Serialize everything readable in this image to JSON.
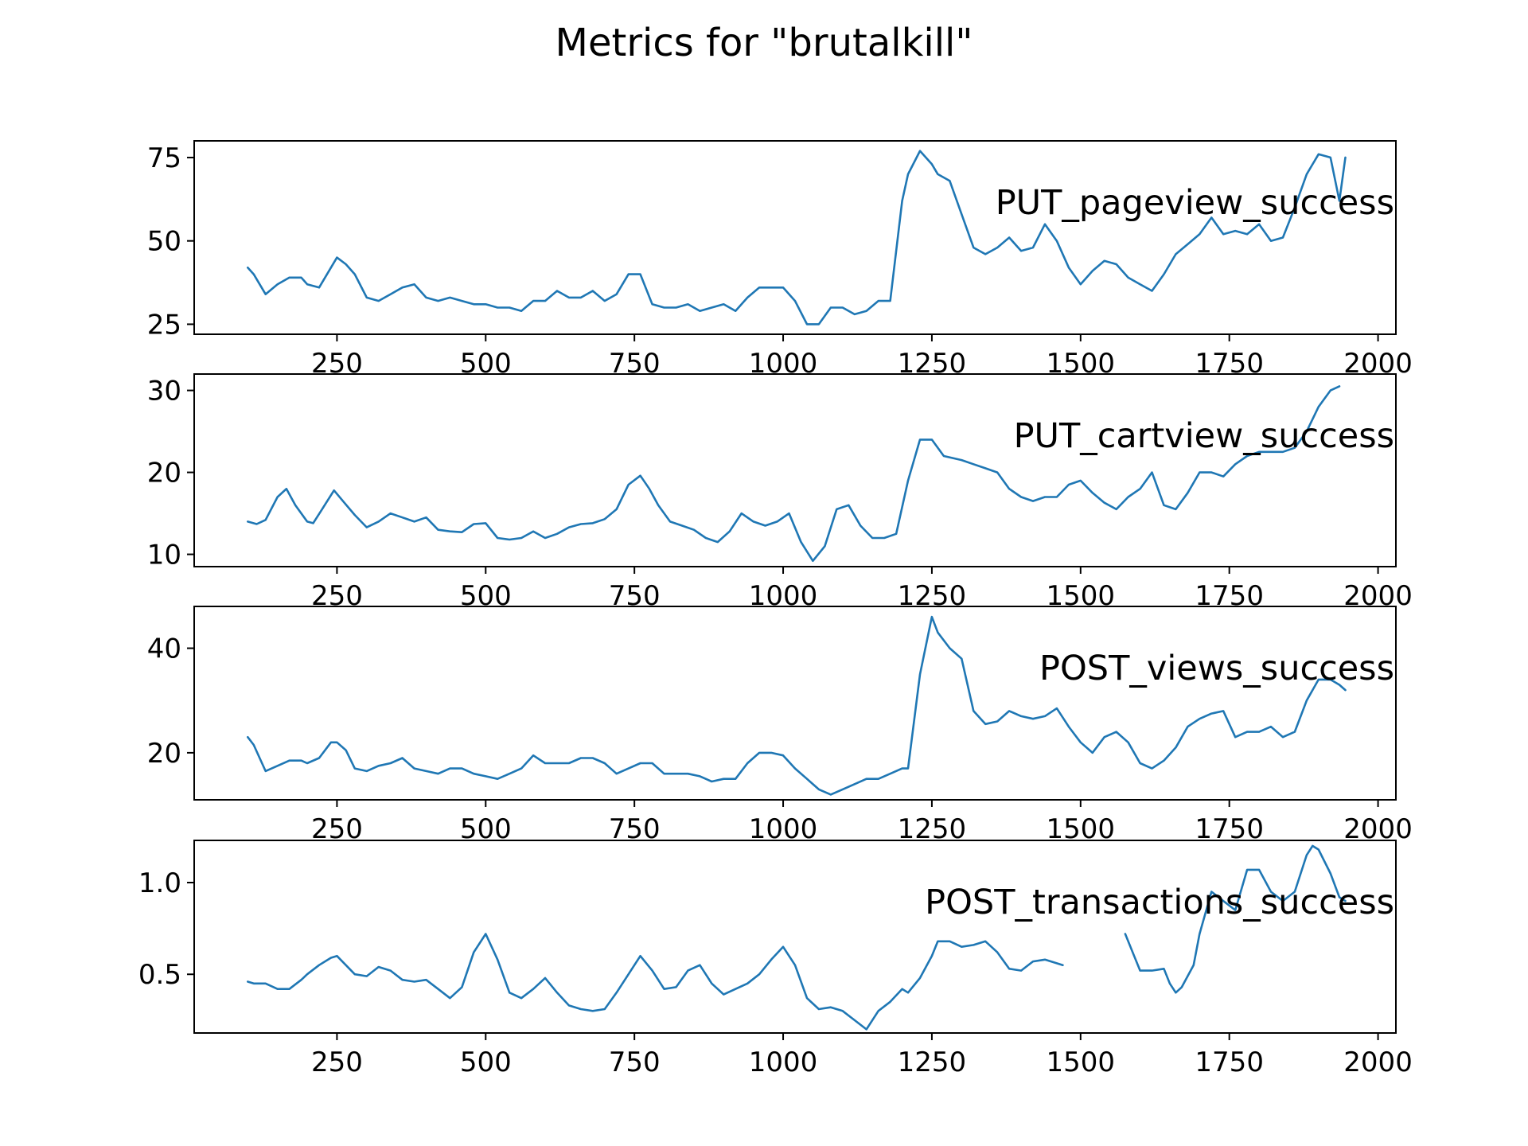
{
  "colors": {
    "line": "#1f77b4",
    "axes": "#000000",
    "background": "#ffffff"
  },
  "chart_data": {
    "type": "line",
    "title": "Metrics for \"brutalkill\"",
    "layout": "4 stacked subplots sharing x range",
    "xlim": [
      10,
      2030
    ],
    "xticks": [
      250,
      500,
      750,
      1000,
      1250,
      1500,
      1750,
      2000
    ],
    "grid": false,
    "legend": "none",
    "subplots": [
      {
        "annotation": "PUT_pageview_success",
        "ylim": [
          22,
          80
        ],
        "yticks": [
          {
            "v": 25,
            "label": "25"
          },
          {
            "v": 50,
            "label": "50"
          },
          {
            "v": 75,
            "label": "75"
          }
        ],
        "series": [
          {
            "x": [
              100,
              110,
              130,
              150,
              170,
              190,
              200,
              220,
              240,
              250,
              265,
              280,
              300,
              320,
              340,
              360,
              380,
              400,
              420,
              440,
              460,
              480,
              500,
              520,
              540,
              560,
              580,
              600,
              620,
              640,
              660,
              680,
              700,
              720,
              740,
              760,
              780,
              800,
              820,
              840,
              860,
              880,
              900,
              920,
              940,
              960,
              980,
              1000,
              1020,
              1040,
              1060,
              1080,
              1100,
              1120,
              1140,
              1160,
              1180,
              1200,
              1210,
              1230,
              1250,
              1260,
              1280,
              1300,
              1320,
              1340,
              1360,
              1380,
              1400,
              1420,
              1440,
              1460,
              1480,
              1500,
              1520,
              1540,
              1560,
              1580,
              1600,
              1620,
              1640,
              1660,
              1680,
              1700,
              1720,
              1740,
              1760,
              1780,
              1800,
              1820,
              1840,
              1860,
              1880,
              1900,
              1920,
              1935,
              1945
            ],
            "y": [
              42,
              40,
              34,
              37,
              39,
              39,
              37,
              36,
              42,
              45,
              43,
              40,
              33,
              32,
              34,
              36,
              37,
              33,
              32,
              33,
              32,
              31,
              31,
              30,
              30,
              29,
              32,
              32,
              35,
              33,
              33,
              35,
              32,
              34,
              40,
              40,
              31,
              30,
              30,
              31,
              29,
              30,
              31,
              29,
              33,
              36,
              36,
              36,
              32,
              25,
              25,
              30,
              30,
              28,
              29,
              32,
              32,
              62,
              70,
              77,
              73,
              70,
              68,
              58,
              48,
              46,
              48,
              51,
              47,
              48,
              55,
              50,
              42,
              37,
              41,
              44,
              43,
              39,
              37,
              35,
              40,
              46,
              49,
              52,
              57,
              52,
              53,
              52,
              55,
              50,
              51,
              60,
              70,
              76,
              75,
              62,
              75
            ]
          }
        ]
      },
      {
        "annotation": "PUT_cartview_success",
        "ylim": [
          8.5,
          32
        ],
        "yticks": [
          {
            "v": 10,
            "label": "10"
          },
          {
            "v": 20,
            "label": "20"
          },
          {
            "v": 30,
            "label": "30"
          }
        ],
        "series": [
          {
            "x": [
              100,
              115,
              130,
              150,
              165,
              180,
              200,
              210,
              225,
              245,
              260,
              280,
              300,
              320,
              340,
              360,
              380,
              400,
              420,
              440,
              460,
              480,
              500,
              520,
              540,
              560,
              580,
              600,
              620,
              640,
              660,
              680,
              700,
              720,
              740,
              760,
              775,
              790,
              810,
              830,
              850,
              870,
              890,
              910,
              930,
              950,
              970,
              990,
              1010,
              1030,
              1050,
              1070,
              1090,
              1110,
              1130,
              1150,
              1170,
              1190,
              1210,
              1230,
              1250,
              1270,
              1300,
              1320,
              1340,
              1360,
              1380,
              1400,
              1420,
              1440,
              1460,
              1480,
              1500,
              1520,
              1540,
              1560,
              1580,
              1600,
              1620,
              1640,
              1660,
              1680,
              1700,
              1720,
              1740,
              1760,
              1780,
              1800,
              1820,
              1840,
              1860,
              1880,
              1900,
              1920,
              1935
            ],
            "y": [
              14,
              13.7,
              14.2,
              17,
              18,
              16,
              14,
              13.8,
              15.5,
              17.8,
              16.5,
              14.8,
              13.3,
              14,
              15,
              14.5,
              14,
              14.5,
              13,
              12.8,
              12.7,
              13.7,
              13.8,
              12,
              11.8,
              12,
              12.8,
              12,
              12.5,
              13.3,
              13.7,
              13.8,
              14.3,
              15.5,
              18.5,
              19.6,
              18,
              16,
              14,
              13.5,
              13,
              12,
              11.5,
              12.8,
              15,
              14,
              13.5,
              14,
              15,
              11.5,
              9.2,
              11,
              15.5,
              16,
              13.5,
              12,
              12,
              12.5,
              19,
              24,
              24,
              22,
              21.5,
              21,
              20.5,
              20,
              18,
              17,
              16.5,
              17,
              17,
              18.5,
              19,
              17.5,
              16.3,
              15.5,
              17,
              18,
              20,
              16,
              15.5,
              17.5,
              20,
              20,
              19.5,
              21,
              22,
              22.5,
              22.5,
              22.5,
              23,
              25,
              28,
              30,
              30.5
            ]
          }
        ]
      },
      {
        "annotation": "POST_views_success",
        "ylim": [
          11,
          48
        ],
        "yticks": [
          {
            "v": 20,
            "label": "20"
          },
          {
            "v": 40,
            "label": "40"
          }
        ],
        "series": [
          {
            "x": [
              100,
              110,
              130,
              150,
              170,
              190,
              200,
              220,
              240,
              250,
              265,
              280,
              300,
              320,
              340,
              360,
              380,
              400,
              420,
              440,
              460,
              480,
              500,
              520,
              540,
              560,
              580,
              600,
              620,
              640,
              660,
              680,
              700,
              720,
              740,
              760,
              780,
              800,
              820,
              840,
              860,
              880,
              900,
              920,
              940,
              960,
              980,
              1000,
              1020,
              1040,
              1060,
              1080,
              1100,
              1120,
              1140,
              1160,
              1180,
              1200,
              1210,
              1230,
              1250,
              1260,
              1280,
              1300,
              1320,
              1340,
              1360,
              1380,
              1400,
              1420,
              1440,
              1460,
              1480,
              1500,
              1520,
              1540,
              1560,
              1580,
              1600,
              1620,
              1640,
              1660,
              1680,
              1700,
              1720,
              1740,
              1760,
              1780,
              1800,
              1820,
              1840,
              1860,
              1880,
              1900,
              1920,
              1935,
              1945
            ],
            "y": [
              23,
              21.5,
              16.5,
              17.5,
              18.5,
              18.5,
              18,
              19,
              22,
              22,
              20.5,
              17,
              16.5,
              17.5,
              18,
              19,
              17,
              16.5,
              16,
              17,
              17,
              16,
              15.5,
              15,
              16,
              17,
              19.5,
              18,
              18,
              18,
              19,
              19,
              18,
              16,
              17,
              18,
              18,
              16,
              16,
              16,
              15.5,
              14.5,
              15,
              15,
              18,
              20,
              20,
              19.5,
              17,
              15,
              13,
              12,
              13,
              14,
              15,
              15,
              16,
              17,
              17,
              35,
              46,
              43,
              40,
              38,
              28,
              25.5,
              26,
              28,
              27,
              26.5,
              27,
              28.5,
              25,
              22,
              20,
              23,
              24,
              22,
              18,
              17,
              18.5,
              21,
              25,
              26.5,
              27.5,
              28,
              23,
              24,
              24,
              25,
              23,
              24,
              30,
              34,
              34,
              33,
              32
            ]
          }
        ]
      },
      {
        "annotation": "POST_transactions_success",
        "ylim": [
          0.18,
          1.23
        ],
        "yticks": [
          {
            "v": 0.5,
            "label": "0.5"
          },
          {
            "v": 1.0,
            "label": "1.0"
          }
        ],
        "series": [
          {
            "segments": [
              {
                "x": [
                  100,
                  110,
                  130,
                  150,
                  170,
                  190,
                  200,
                  220,
                  240,
                  250,
                  265,
                  280,
                  300,
                  320,
                  340,
                  360,
                  380,
                  400,
                  420,
                  440,
                  460,
                  480,
                  500,
                  520,
                  540,
                  560,
                  580,
                  600,
                  620,
                  640,
                  660,
                  680,
                  700,
                  720,
                  740,
                  760,
                  780,
                  800,
                  820,
                  840,
                  860,
                  880,
                  900,
                  920,
                  940,
                  960,
                  980,
                  1000,
                  1020,
                  1040,
                  1060,
                  1080,
                  1100,
                  1120,
                  1140,
                  1160,
                  1180,
                  1200,
                  1210,
                  1230,
                  1250,
                  1260,
                  1280,
                  1300,
                  1320,
                  1340,
                  1360,
                  1380,
                  1400,
                  1420,
                  1440,
                  1460,
                  1470
                ],
                "y": [
                  0.46,
                  0.45,
                  0.45,
                  0.42,
                  0.42,
                  0.47,
                  0.5,
                  0.55,
                  0.59,
                  0.6,
                  0.55,
                  0.5,
                  0.49,
                  0.54,
                  0.52,
                  0.47,
                  0.46,
                  0.47,
                  0.42,
                  0.37,
                  0.43,
                  0.62,
                  0.72,
                  0.58,
                  0.4,
                  0.37,
                  0.42,
                  0.48,
                  0.4,
                  0.33,
                  0.31,
                  0.3,
                  0.31,
                  0.4,
                  0.5,
                  0.6,
                  0.52,
                  0.42,
                  0.43,
                  0.52,
                  0.55,
                  0.45,
                  0.39,
                  0.42,
                  0.45,
                  0.5,
                  0.58,
                  0.65,
                  0.55,
                  0.37,
                  0.31,
                  0.32,
                  0.3,
                  0.25,
                  0.2,
                  0.3,
                  0.35,
                  0.42,
                  0.4,
                  0.48,
                  0.6,
                  0.68,
                  0.68,
                  0.65,
                  0.66,
                  0.68,
                  0.62,
                  0.53,
                  0.52,
                  0.57,
                  0.58,
                  0.56,
                  0.55
                ]
              },
              {
                "x": [
                  1575,
                  1590,
                  1600,
                  1620,
                  1640,
                  1650,
                  1660,
                  1670,
                  1690,
                  1700,
                  1720,
                  1740,
                  1760,
                  1780,
                  1800,
                  1820,
                  1840,
                  1860,
                  1880,
                  1890,
                  1900,
                  1920,
                  1935,
                  1945
                ],
                "y": [
                  0.72,
                  0.6,
                  0.52,
                  0.52,
                  0.53,
                  0.45,
                  0.4,
                  0.43,
                  0.55,
                  0.72,
                  0.95,
                  0.9,
                  0.85,
                  1.07,
                  1.07,
                  0.95,
                  0.9,
                  0.95,
                  1.15,
                  1.2,
                  1.18,
                  1.05,
                  0.92,
                  0.9
                ]
              }
            ]
          }
        ]
      }
    ]
  }
}
